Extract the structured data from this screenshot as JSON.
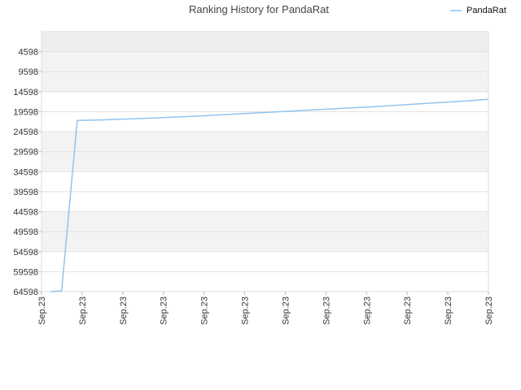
{
  "chart_data": {
    "type": "line",
    "title": "Ranking History for PandaRat",
    "xlabel": "",
    "ylabel": "",
    "y_reversed": true,
    "ylim": [
      -402,
      64598
    ],
    "y_ticks": [
      4598,
      9598,
      14598,
      19598,
      24598,
      29598,
      34598,
      39598,
      44598,
      49598,
      54598,
      59598,
      64598
    ],
    "x_tick_labels": [
      "Sep.23",
      "Sep.23",
      "Sep.23",
      "Sep.23",
      "Sep.23",
      "Sep.23",
      "Sep.23",
      "Sep.23",
      "Sep.23",
      "Sep.23",
      "Sep.23",
      "Sep.23"
    ],
    "grid": true,
    "legend_position": "top-right",
    "series": [
      {
        "name": "PandaRat",
        "color": "#90c4f0",
        "x": [
          0.02,
          0.045,
          0.08,
          0.15,
          0.25,
          0.35,
          0.45,
          0.55,
          0.65,
          0.75,
          0.85,
          0.95,
          1.0
        ],
        "values": [
          64598,
          64398,
          21798,
          21598,
          21198,
          20698,
          20098,
          19498,
          18898,
          18298,
          17598,
          16898,
          16498
        ]
      }
    ]
  }
}
